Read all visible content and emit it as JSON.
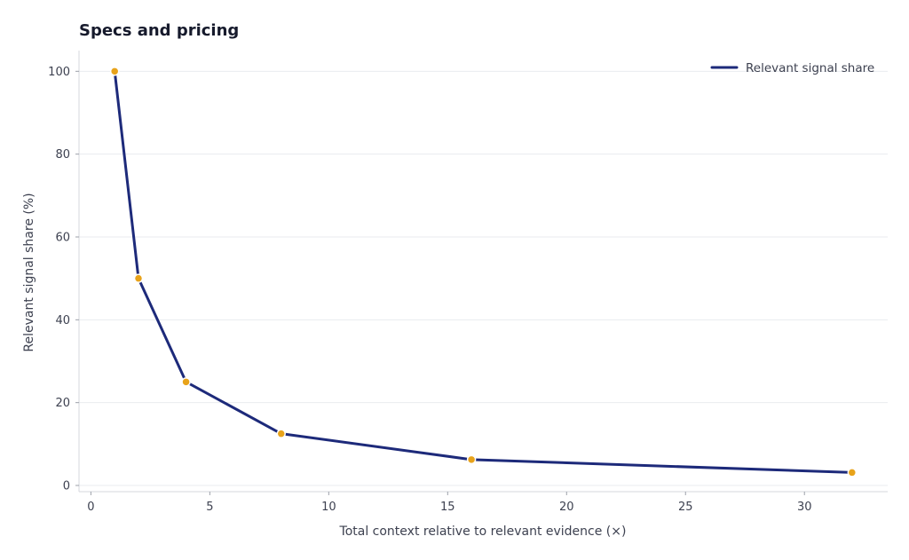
{
  "chart_data": {
    "type": "line",
    "title": "Specs and pricing",
    "xlabel": "Total context relative to relevant evidence (×)",
    "ylabel": "Relevant signal share (%)",
    "xlim": [
      -0.5,
      33.5
    ],
    "ylim": [
      -1.5,
      105
    ],
    "x_ticks": [
      0,
      5,
      10,
      15,
      20,
      25,
      30
    ],
    "y_ticks": [
      0,
      20,
      40,
      60,
      80,
      100
    ],
    "grid": "horizontal",
    "legend_position": "top-right",
    "series": [
      {
        "name": "Relevant signal share",
        "x": [
          1,
          2,
          4,
          8,
          16,
          32
        ],
        "y": [
          100,
          50,
          25,
          12.5,
          6.25,
          3.125
        ],
        "line_color": "#1d2a7a",
        "marker_color": "#e8a31b"
      }
    ]
  }
}
